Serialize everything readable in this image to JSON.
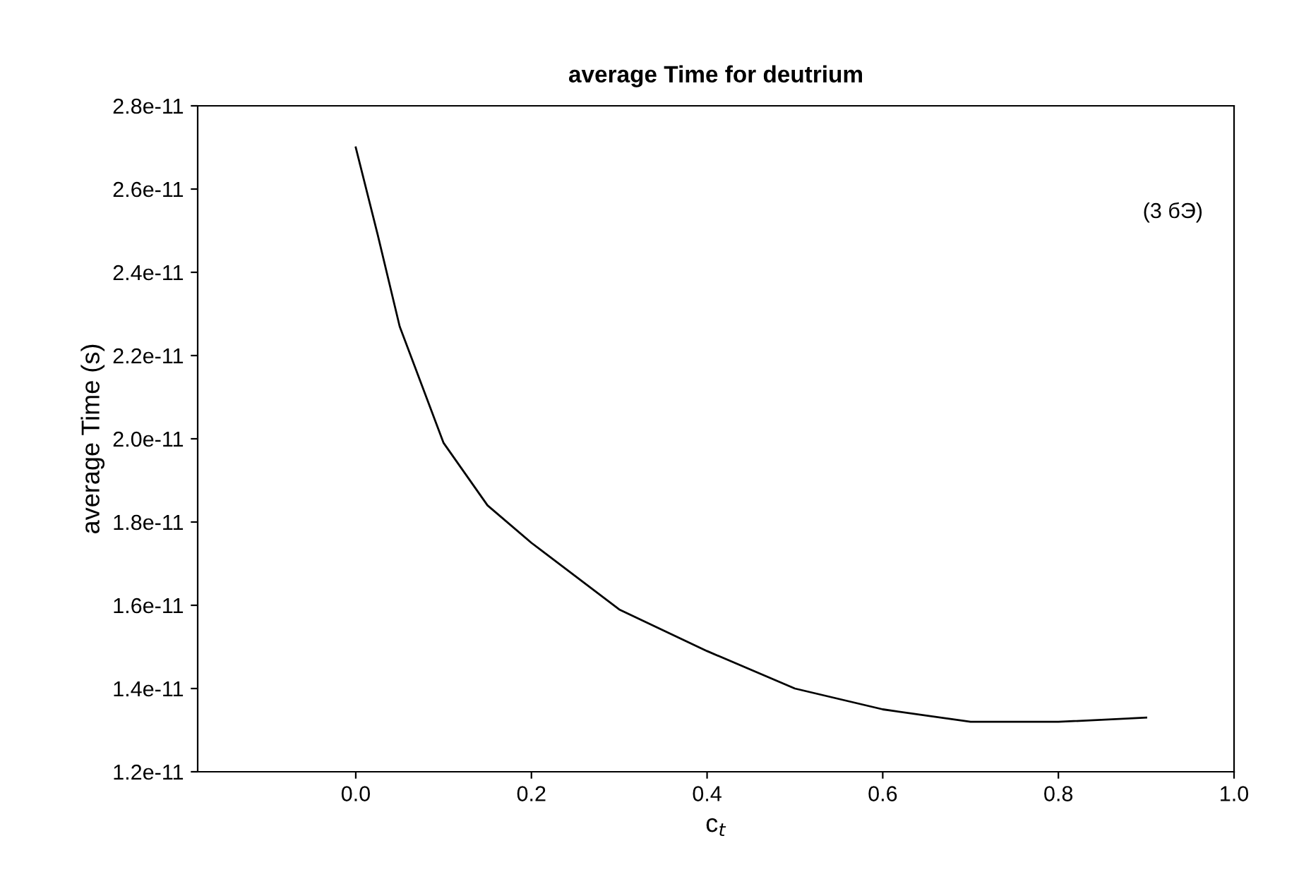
{
  "chart_data": {
    "type": "line",
    "title": "average Time for deutrium",
    "xlabel": "c$_{t}$",
    "ylabel": "average Time (s)",
    "annotations": [
      "(3 бЭ)"
    ],
    "x": [
      0.0,
      0.025,
      0.05,
      0.1,
      0.15,
      0.2,
      0.3,
      0.4,
      0.5,
      0.6,
      0.7,
      0.8,
      0.9
    ],
    "series": [
      {
        "color": "#000000",
        "values": [
          2.7e-11,
          2.49e-11,
          2.27e-11,
          1.99e-11,
          1.84e-11,
          1.75e-11,
          1.59e-11,
          1.49e-11,
          1.4e-11,
          1.35e-11,
          1.32e-11,
          1.32e-11,
          1.33e-11
        ]
      }
    ],
    "xlim": [
      -0.18,
      1.0
    ],
    "xticks": [
      {
        "value": 0,
        "label": "0.0"
      },
      0.2,
      0.4,
      0.6,
      0.8,
      {
        "value": 1,
        "label": "1.0"
      }
    ],
    "ylim": [
      1.2e-11,
      2.8e-11
    ],
    "yticks": [
      {
        "value": 1.2e-11,
        "label": "1.2e-11"
      },
      {
        "value": 1.4e-11,
        "label": "1.4e-11"
      },
      {
        "value": 1.6e-11,
        "label": "1.6e-11"
      },
      {
        "value": 1.8e-11,
        "label": "1.8e-11"
      },
      {
        "value": 2e-11,
        "label": "2.0e-11"
      },
      {
        "value": 2.2e-11,
        "label": "2.2e-11"
      },
      {
        "value": 2.4e-11,
        "label": "2.4e-11"
      },
      {
        "value": 2.6e-11,
        "label": "2.6e-11"
      },
      {
        "value": 2.8e-11,
        "label": "2.8e-11"
      }
    ],
    "grid": false,
    "marker": "none",
    "line_style": "solid"
  }
}
